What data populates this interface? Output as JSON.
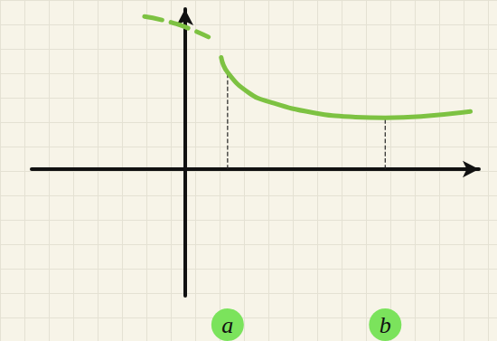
{
  "chart_data": {
    "type": "line",
    "series": [
      {
        "x": [
          0.85,
          1,
          1.5,
          2.0,
          3.0,
          4.0,
          4.7,
          5.6,
          6.7
        ],
        "values": [
          3.0,
          2.6,
          2.05,
          1.8,
          1.52,
          1.4,
          1.38,
          1.42,
          1.55
        ],
        "color": "#7dc242",
        "line_style": "solid"
      },
      {
        "x": [
          -0.95,
          -0.2,
          0.55
        ],
        "values": [
          4.1,
          3.9,
          3.55
        ],
        "color": "#7dc242",
        "line_style": "dashed"
      }
    ],
    "xlim": [
      -3.6,
      6.9
    ],
    "ylim": [
      -3.4,
      4.3
    ],
    "xticks": [
      {
        "value": 1,
        "label": "a"
      },
      {
        "value": 4.7,
        "label": "b"
      }
    ],
    "yticks": [],
    "tick_labels": "x",
    "grid": false
  }
}
